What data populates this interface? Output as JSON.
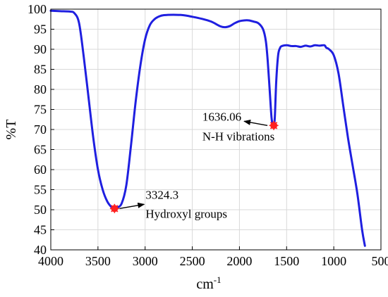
{
  "chart_data": {
    "type": "line",
    "xlabel": "cm",
    "xlabel_superscript": "-1",
    "ylabel": "%T",
    "xlim": [
      4000,
      500
    ],
    "ylim": [
      40,
      100
    ],
    "x_reversed": true,
    "grid": true,
    "xticks": [
      "4000",
      "3500",
      "3000",
      "2500",
      "2000",
      "1500",
      "1000",
      "500"
    ],
    "yticks": [
      "100",
      "95",
      "90",
      "85",
      "80",
      "75",
      "70",
      "65",
      "60",
      "55",
      "50",
      "45",
      "40"
    ],
    "series": [
      {
        "color": "#1f1fe0",
        "x": [
          4000,
          3900,
          3800,
          3750,
          3700,
          3650,
          3600,
          3550,
          3500,
          3450,
          3400,
          3350,
          3324,
          3300,
          3250,
          3200,
          3150,
          3100,
          3050,
          3000,
          2950,
          2900,
          2850,
          2800,
          2700,
          2600,
          2500,
          2400,
          2300,
          2200,
          2150,
          2100,
          2050,
          2000,
          1950,
          1900,
          1850,
          1800,
          1750,
          1720,
          1700,
          1680,
          1660,
          1645,
          1636,
          1625,
          1610,
          1590,
          1570,
          1550,
          1500,
          1450,
          1400,
          1350,
          1300,
          1250,
          1200,
          1150,
          1100,
          1080,
          1050,
          1000,
          950,
          900,
          850,
          800,
          750,
          700,
          670
        ],
        "y": [
          99.6,
          99.5,
          99.4,
          99.0,
          96.5,
          88.0,
          78.0,
          68.0,
          60.0,
          55.0,
          52.0,
          50.5,
          50.3,
          50.5,
          51.5,
          56.0,
          66.0,
          77.0,
          86.0,
          92.5,
          96.0,
          97.5,
          98.2,
          98.5,
          98.6,
          98.5,
          98.1,
          97.6,
          96.9,
          95.7,
          95.5,
          95.8,
          96.5,
          97.0,
          97.2,
          97.2,
          96.9,
          96.5,
          95.0,
          92.0,
          87.0,
          80.0,
          73.0,
          71.0,
          71.0,
          73.0,
          82.0,
          88.5,
          90.3,
          90.8,
          91.0,
          90.8,
          90.8,
          90.6,
          90.9,
          90.7,
          91.0,
          90.9,
          91.0,
          90.4,
          90.0,
          88.5,
          84.0,
          76.0,
          68.0,
          61.0,
          54.0,
          45.0,
          41.0
        ]
      }
    ],
    "markers": [
      {
        "x": 3324.3,
        "y": 50.3,
        "color": "#ff2020"
      },
      {
        "x": 1636.06,
        "y": 71.0,
        "color": "#ff2020"
      }
    ],
    "annotations": [
      {
        "value": "3324.3",
        "label": "Hydroxyl groups",
        "x": 3324.3,
        "y": 50.3,
        "arrow": "right"
      },
      {
        "value": "1636.06",
        "label": "N-H vibrations",
        "x": 1636.06,
        "y": 71.0,
        "arrow": "left"
      }
    ]
  }
}
